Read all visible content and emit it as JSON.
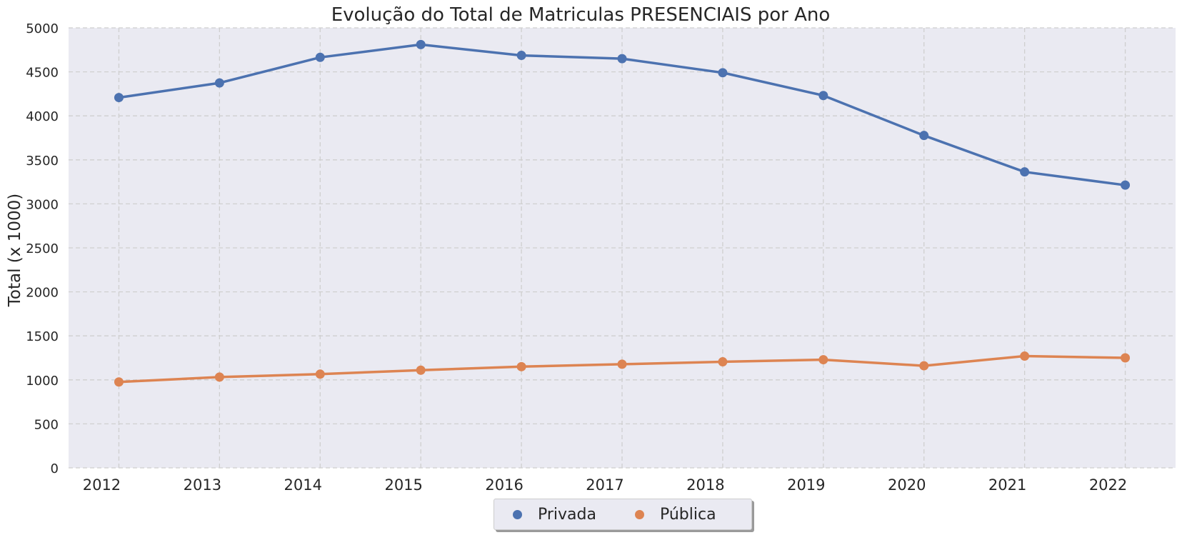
{
  "chart_data": {
    "type": "line",
    "title": "Evolução do Total de Matriculas PRESENCIAIS por Ano",
    "xlabel": "",
    "ylabel": "Total (x 1000)",
    "x": [
      2012,
      2013,
      2014,
      2015,
      2016,
      2017,
      2018,
      2019,
      2020,
      2021,
      2022
    ],
    "ylim": [
      0,
      5000
    ],
    "yticks": [
      0,
      500,
      1000,
      1500,
      2000,
      2500,
      3000,
      3500,
      4000,
      4500,
      5000
    ],
    "grid": true,
    "legend_position": "bottom-center",
    "series": [
      {
        "name": "Privada",
        "color": "#4c72b0",
        "values": [
          4208,
          4374,
          4665,
          4810,
          4687,
          4650,
          4490,
          4231,
          3777,
          3363,
          3213
        ]
      },
      {
        "name": "Pública",
        "color": "#dd8452",
        "values": [
          976,
          1032,
          1065,
          1110,
          1150,
          1178,
          1205,
          1229,
          1160,
          1270,
          1250
        ]
      }
    ]
  }
}
